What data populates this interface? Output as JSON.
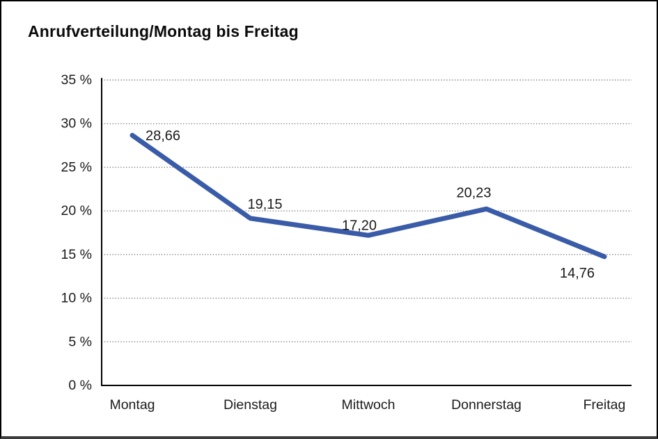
{
  "page": {
    "background": "#ffffff",
    "border_color": "#000000"
  },
  "chart_data": {
    "type": "line",
    "title": "Anrufverteilung/Montag bis Freitag",
    "categories": [
      "Montag",
      "Dienstag",
      "Mittwoch",
      "Donnerstag",
      "Freitag"
    ],
    "values": [
      28.66,
      19.15,
      17.2,
      20.23,
      14.76
    ],
    "value_labels": [
      "28,66",
      "19,15",
      "17,20",
      "20,23",
      "14,76"
    ],
    "xlabel": "",
    "ylabel": "",
    "ylim": [
      0,
      35
    ],
    "ytick_step": 5,
    "ytick_labels": [
      "0 %",
      "5 %",
      "10 %",
      "15 %",
      "20 %",
      "25 %",
      "30 %",
      "35 %"
    ],
    "grid": "horizontal-dotted",
    "legend": "none",
    "line_color": "#3A5BA8",
    "grid_color": "#7a7a7a",
    "axis_color": "#000000",
    "text_color": "#1a1a1a"
  }
}
